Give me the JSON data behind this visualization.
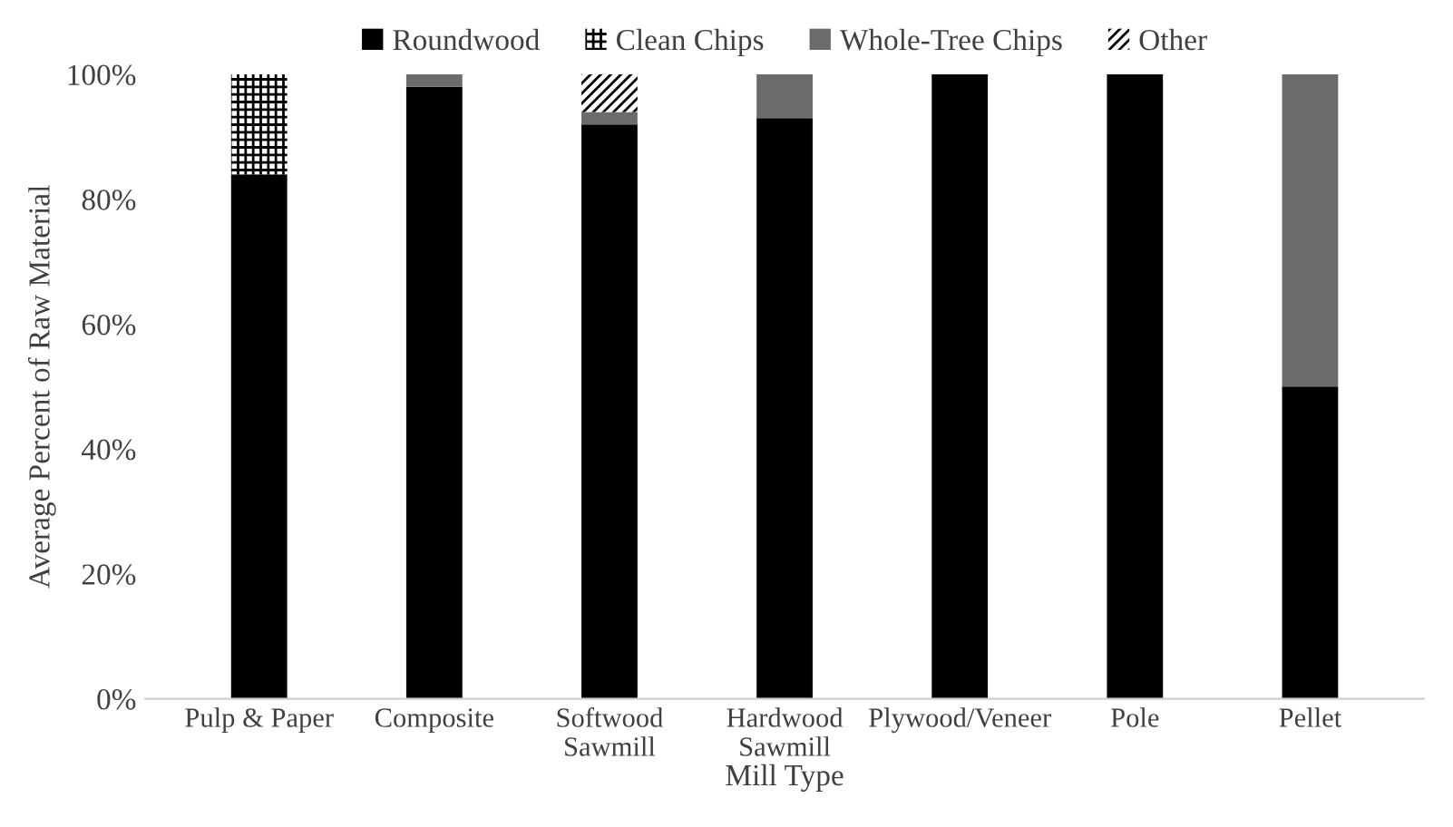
{
  "chart_data": {
    "type": "bar",
    "stacked": true,
    "xlabel": "Mill Type",
    "ylabel": "Average Percent of Raw Material",
    "categories": [
      "Pulp & Paper",
      "Composite",
      "Softwood\nSawmill",
      "Hardwood\nSawmill",
      "Plywood/Veneer",
      "Pole",
      "Pellet"
    ],
    "series": [
      {
        "name": "Roundwood",
        "color": "#000000",
        "values": [
          84,
          98,
          92,
          93,
          100,
          100,
          50
        ]
      },
      {
        "name": "Clean Chips",
        "color": "#000000",
        "values": [
          16,
          0,
          0,
          0,
          0,
          0,
          0
        ]
      },
      {
        "name": "Whole-Tree Chips",
        "color": "#6b6b6b",
        "values": [
          0,
          2,
          2,
          7,
          0,
          0,
          50
        ]
      },
      {
        "name": "Other",
        "color": "#000000",
        "values": [
          0,
          0,
          6,
          0,
          0,
          0,
          0
        ]
      }
    ],
    "ylim": [
      0,
      100
    ],
    "yticks": [
      {
        "value": 0,
        "label": "0%"
      },
      {
        "value": 20,
        "label": "20%"
      },
      {
        "value": 40,
        "label": "40%"
      },
      {
        "value": 60,
        "label": "60%"
      },
      {
        "value": 80,
        "label": "80%"
      },
      {
        "value": 100,
        "label": "100%"
      }
    ],
    "grid": false,
    "legend": "top"
  }
}
